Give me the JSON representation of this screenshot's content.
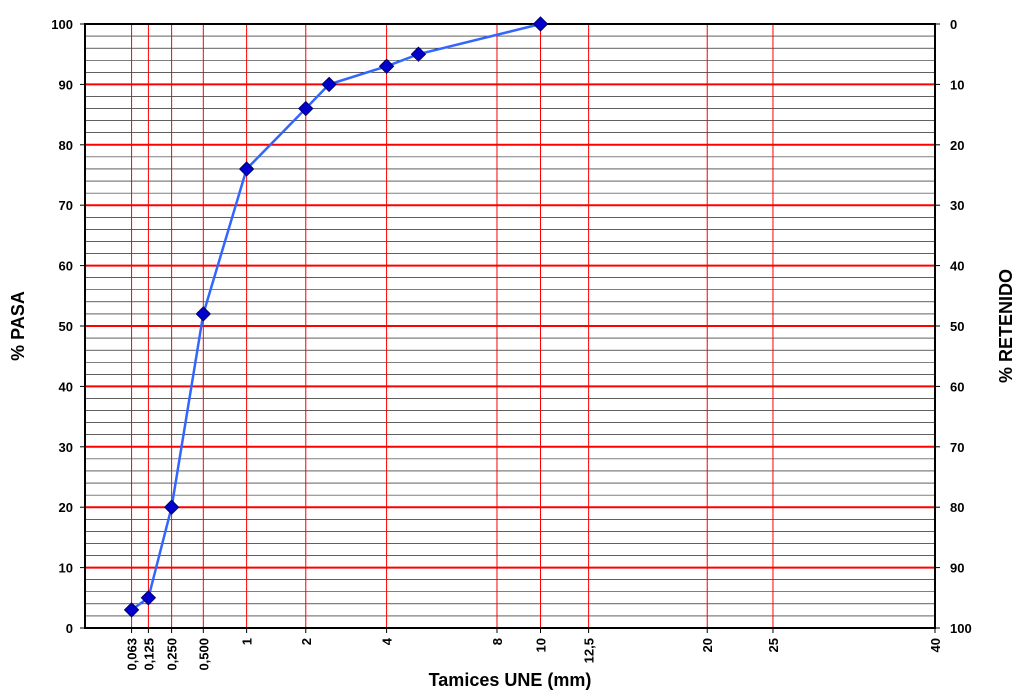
{
  "chart_data": {
    "type": "line",
    "x_label": "Tamices UNE (mm)",
    "y_label": "% PASA",
    "y2_label": "% RETENIDO",
    "xscale": "power",
    "xscale_exponent": 0.45,
    "xlim": [
      0,
      40
    ],
    "xticks": [
      {
        "value": 0.063,
        "label": "0,063"
      },
      {
        "value": 0.125,
        "label": "0,125"
      },
      {
        "value": 0.25,
        "label": "0,250"
      },
      {
        "value": 0.5,
        "label": "0,500"
      },
      1,
      2,
      4,
      8,
      10,
      {
        "value": 12.5,
        "label": "12,5"
      },
      20,
      25,
      40
    ],
    "ylim": [
      0,
      100
    ],
    "yticks": [
      0,
      10,
      20,
      30,
      40,
      50,
      60,
      70,
      80,
      90,
      100
    ],
    "yminorticks": [
      2,
      4,
      6,
      8,
      12,
      14,
      16,
      18,
      22,
      24,
      26,
      28,
      32,
      34,
      36,
      38,
      42,
      44,
      46,
      48,
      52,
      54,
      56,
      58,
      62,
      64,
      66,
      68,
      72,
      74,
      76,
      78,
      82,
      84,
      86,
      88,
      92,
      94,
      96,
      98
    ],
    "y2lim": [
      100,
      0
    ],
    "y2ticks": [
      0,
      10,
      20,
      30,
      40,
      50,
      60,
      70,
      80,
      90,
      100
    ],
    "grid": true,
    "grid_color": "#ff0000",
    "minor_grid_color": "#000000",
    "x": [
      0.063,
      0.125,
      0.25,
      0.5,
      1,
      2,
      2.5,
      4,
      5,
      10
    ],
    "series": [
      {
        "color": "#3366ff",
        "marker_color": "#0000cc",
        "values": [
          3,
          5,
          20,
          52,
          76,
          86,
          90,
          93,
          95,
          100
        ]
      }
    ]
  }
}
